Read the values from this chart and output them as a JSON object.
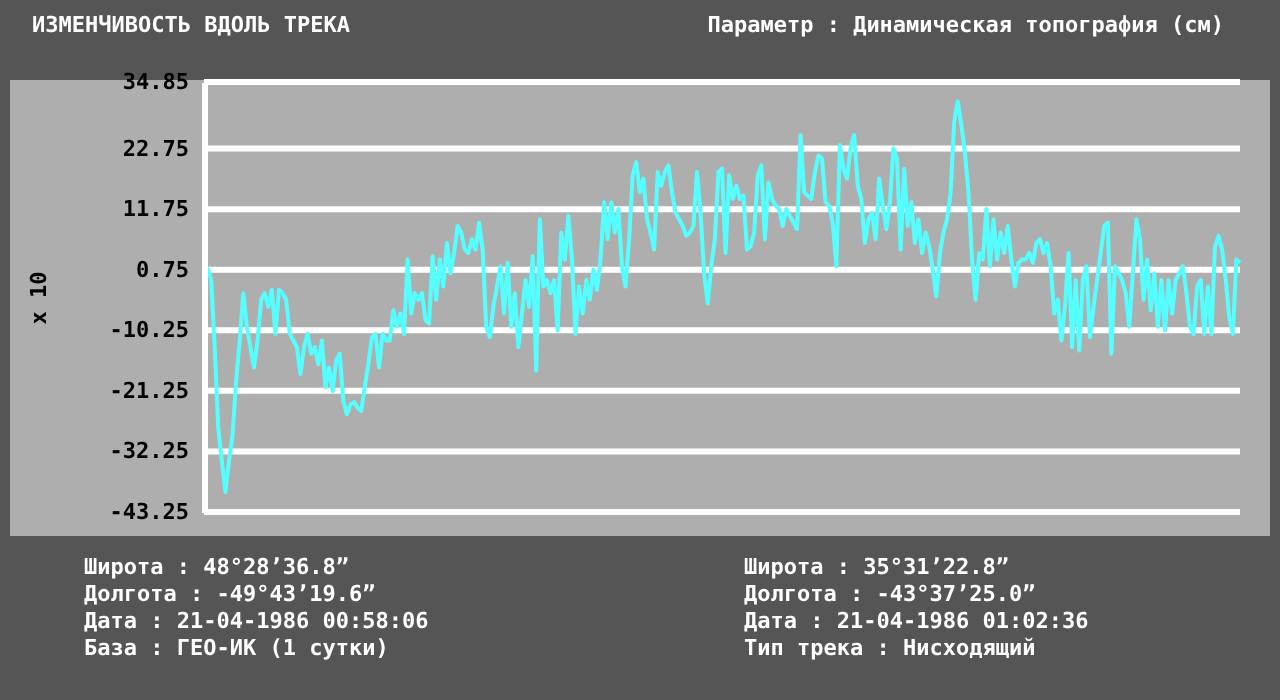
{
  "chart_data": {
    "type": "line",
    "title": "ИЗМЕНЧИВОСТЬ ВДОЛЬ ТРЕКА",
    "subtitle": "Параметр : Динамическая топография (см)",
    "ylabel": "x 10",
    "ylim": [
      -43.25,
      34.85
    ],
    "yticks": [
      -43.25,
      -32.25,
      -21.25,
      -10.25,
      0.75,
      11.75,
      22.75,
      34.85
    ],
    "grid": "y",
    "marker": "none",
    "line_style": "solid",
    "categories": [
      null,
      null,
      null,
      null,
      null,
      null,
      null,
      null,
      null,
      null,
      null,
      null,
      null,
      null,
      null,
      null,
      null,
      null,
      null,
      null,
      null,
      null,
      null,
      null,
      null,
      null,
      null,
      null,
      null,
      null,
      null,
      null,
      null,
      null,
      null,
      null,
      null,
      null,
      null,
      null,
      null,
      null,
      null,
      null,
      null,
      null,
      null,
      null,
      null,
      null,
      null,
      null,
      null,
      null,
      null,
      null,
      null,
      null,
      null,
      null,
      null,
      null,
      null,
      null,
      null,
      null,
      null,
      null,
      null,
      null,
      null,
      null,
      null,
      null,
      null,
      null,
      null,
      null,
      null,
      null,
      null,
      null,
      null,
      null,
      null,
      null,
      null,
      null,
      null,
      null,
      null,
      null,
      null,
      null,
      null,
      null,
      null,
      null,
      null,
      null,
      null,
      null,
      null,
      null,
      null,
      null,
      null,
      null,
      null,
      null,
      null,
      null,
      null,
      null,
      null,
      null,
      null,
      null,
      null,
      null,
      null,
      null,
      null,
      null,
      null,
      null,
      null,
      null,
      null,
      null,
      null,
      null,
      null,
      null,
      null,
      null,
      null,
      null,
      null,
      null,
      null,
      null,
      null,
      null,
      null,
      null,
      null,
      null,
      null,
      null,
      null,
      null,
      null,
      null,
      null,
      null,
      null,
      null,
      null,
      null,
      null,
      null,
      null,
      null,
      null,
      null,
      null,
      null,
      null,
      null,
      null,
      null,
      null,
      null,
      null,
      null,
      null,
      null,
      null,
      null,
      null,
      null,
      null,
      null,
      null,
      null,
      null,
      null,
      null,
      null,
      null,
      null,
      null,
      null,
      null,
      null,
      null,
      null,
      null,
      null,
      null,
      null,
      null,
      null,
      null,
      null,
      null,
      null,
      null,
      null,
      null,
      null,
      null,
      null,
      null,
      null,
      null,
      null,
      null,
      null,
      null,
      null,
      null,
      null,
      null,
      null,
      null,
      null,
      null,
      null,
      null,
      null,
      null,
      null,
      null,
      null,
      null,
      null,
      null,
      null,
      null,
      null,
      null,
      null,
      null,
      null,
      null,
      null,
      null,
      null,
      null,
      null,
      null,
      null,
      null,
      null,
      null,
      null,
      null,
      null,
      null,
      null,
      null,
      null,
      null,
      null,
      null,
      null,
      null,
      null,
      null,
      null,
      null,
      null,
      null,
      null,
      null,
      null,
      null,
      null,
      null,
      null,
      null,
      null,
      null,
      null,
      null,
      null,
      null,
      null,
      null
    ],
    "series": [
      {
        "color": "#55ffff",
        "values": [
          -1.1,
          1.1,
          -1.1,
          -13.3,
          -28,
          -34,
          -39.6,
          -34,
          -29.2,
          -19.4,
          -12.1,
          -3.5,
          -9.6,
          -13.3,
          -17,
          -12.1,
          -4.7,
          -3.5,
          -6,
          -2.9,
          -10.9,
          -2.9,
          -3.5,
          -4.7,
          -10.9,
          -12.1,
          -13.3,
          -18.2,
          -13.3,
          -10.9,
          -14.5,
          -13.3,
          -16.4,
          -12.1,
          -20.6,
          -17,
          -21.3,
          -15.7,
          -14.5,
          -23,
          -25.5,
          -23.7,
          -23.3,
          -24.3,
          -24.9,
          -20.6,
          -16.4,
          -11.5,
          -10.9,
          -17,
          -10.9,
          -12.1,
          -12.1,
          -6.6,
          -9.6,
          -7.2,
          -10.9,
          2.6,
          -7.2,
          -3.5,
          -4.7,
          -3.5,
          -8.4,
          -9,
          3.2,
          -4.7,
          2.6,
          -2.3,
          5.6,
          0.1,
          3.8,
          8.7,
          7.5,
          4.4,
          3.8,
          6.3,
          4.4,
          9.3,
          4.4,
          -9.6,
          -11.5,
          -6,
          -2.3,
          1.4,
          -7.2,
          2,
          -9.6,
          -3.5,
          -13.3,
          -7.2,
          -1.1,
          -6,
          3.2,
          -17.6,
          9.9,
          -2.3,
          -1.1,
          -3.5,
          -1.1,
          -10.3,
          7.5,
          2.6,
          10.5,
          2.6,
          -10.9,
          -2.3,
          -7.2,
          -1.1,
          -4.7,
          0.8,
          -2.9,
          2.6,
          13,
          6.3,
          13,
          7.5,
          11.8,
          1.4,
          -2.3,
          6.3,
          17.9,
          20.3,
          14.8,
          17.3,
          9.9,
          7.5,
          4.4,
          18.5,
          16,
          18.5,
          19.7,
          14.8,
          11.1,
          9.9,
          8.7,
          6.9,
          7.5,
          8.7,
          18.5,
          11.1,
          0.1,
          -5.4,
          1.4,
          6.3,
          18.5,
          19.1,
          3.8,
          17.9,
          13.6,
          16,
          13.6,
          14.2,
          4.4,
          5,
          7.5,
          17.9,
          19.7,
          6.3,
          16.6,
          13.6,
          12.4,
          11.8,
          8.7,
          11.8,
          10.5,
          9.3,
          8.1,
          25.2,
          14.8,
          14.2,
          13.6,
          18.5,
          21.5,
          20.9,
          13,
          12.4,
          9.3,
          1.4,
          23.4,
          19.1,
          17.3,
          22.8,
          25.2,
          16,
          13.6,
          5.6,
          9.9,
          11.1,
          6.3,
          17.3,
          12.4,
          8.1,
          13,
          22.8,
          20.9,
          4.4,
          19.1,
          8.7,
          13,
          5.6,
          9.9,
          3.8,
          7.5,
          5,
          0.8,
          -4.1,
          3.8,
          7.5,
          9.9,
          14.8,
          27.6,
          31.3,
          27,
          22.1,
          14.8,
          2.6,
          -4.7,
          3.8,
          2.6,
          11.8,
          1.4,
          9.9,
          2.6,
          7.5,
          3.8,
          8.7,
          2.6,
          -2.3,
          2,
          2.6,
          2.6,
          3.8,
          2,
          5.6,
          6.3,
          3.8,
          5.6,
          1.4,
          -7.2,
          -4.7,
          -12.1,
          -6,
          3.8,
          -13.3,
          -1.1,
          -13.9,
          -1.1,
          1.4,
          -11.5,
          -6,
          -1.1,
          3.8,
          8.7,
          9.3,
          -14.5,
          1.4,
          0.1,
          -1.1,
          -3.5,
          -9.6,
          0.1,
          9.9,
          6.3,
          -4.7,
          2.6,
          -6.6,
          0.1,
          -9.6,
          -1.1,
          -10.3,
          -1.1,
          -7.2,
          -1.1,
          0.1,
          1.4,
          -3.5,
          -9.6,
          -10.9,
          -2.3,
          -1.1,
          -10.9,
          -2.3,
          -10.9,
          5,
          6.9,
          4.4,
          -1.1,
          -7.9,
          -10.9,
          2.6,
          2
        ]
      }
    ],
    "annotations": [
      "Широта : 48°28’36.8”",
      "Долгота : -49°43’19.6”",
      "Дата : 21-04-1986 00:58:06",
      "База : ГЕО-ИК (1 сутки)",
      "Широта : 35°31’22.8”",
      "Долгота : -43°37’25.0”",
      "Дата : 21-04-1986 01:02:36",
      "Тип трека : Нисходящий"
    ]
  }
}
